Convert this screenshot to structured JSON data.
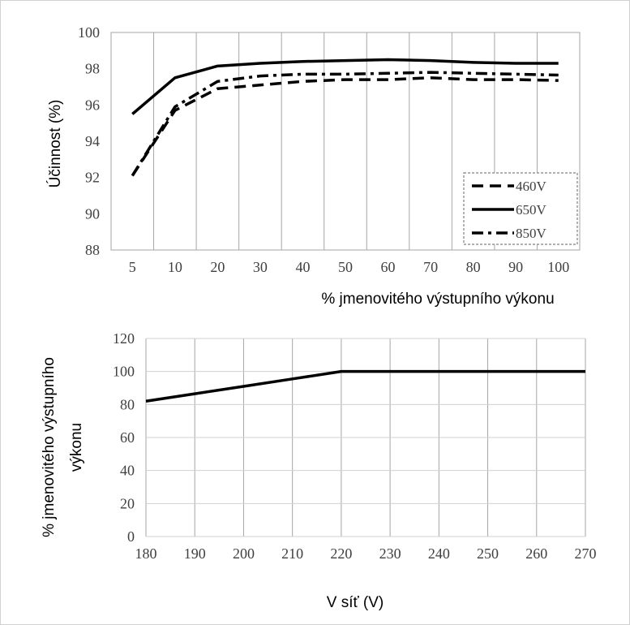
{
  "chart_data": [
    {
      "type": "line",
      "categories": [
        "5",
        "10",
        "20",
        "30",
        "40",
        "50",
        "60",
        "70",
        "80",
        "90",
        "100"
      ],
      "series": [
        {
          "name": "460V",
          "style": "dashed",
          "values": [
            92.1,
            95.7,
            96.9,
            97.1,
            97.3,
            97.4,
            97.4,
            97.5,
            97.4,
            97.4,
            97.35
          ]
        },
        {
          "name": "650V",
          "style": "solid",
          "values": [
            95.5,
            97.5,
            98.15,
            98.3,
            98.4,
            98.45,
            98.5,
            98.45,
            98.35,
            98.3,
            98.3
          ]
        },
        {
          "name": "850V",
          "style": "dash-dot",
          "values": [
            92.1,
            95.9,
            97.3,
            97.6,
            97.7,
            97.7,
            97.75,
            97.8,
            97.75,
            97.7,
            97.65
          ]
        }
      ],
      "xlabel": "% jmenovitého výstupního výkonu",
      "ylabel": "Účinnost (%)",
      "yticks": [
        "88",
        "90",
        "92",
        "94",
        "96",
        "98",
        "100"
      ],
      "ylim": [
        88,
        100
      ],
      "grid": "vertical",
      "legend": "bottom-right"
    },
    {
      "type": "line",
      "categories": [
        "180",
        "190",
        "200",
        "210",
        "220",
        "230",
        "240",
        "250",
        "260",
        "270"
      ],
      "series": [
        {
          "name": "",
          "style": "solid",
          "values": [
            82,
            86.5,
            91,
            95.5,
            100,
            100,
            100,
            100,
            100,
            100
          ]
        }
      ],
      "xlabel": "V síť (V)",
      "ylabel_lines": [
        "% jmenovitého výstupního",
        "výkonu"
      ],
      "yticks": [
        "0",
        "20",
        "40",
        "60",
        "80",
        "100",
        "120"
      ],
      "ylim": [
        0,
        120
      ],
      "grid": "both",
      "legend": "none"
    }
  ]
}
